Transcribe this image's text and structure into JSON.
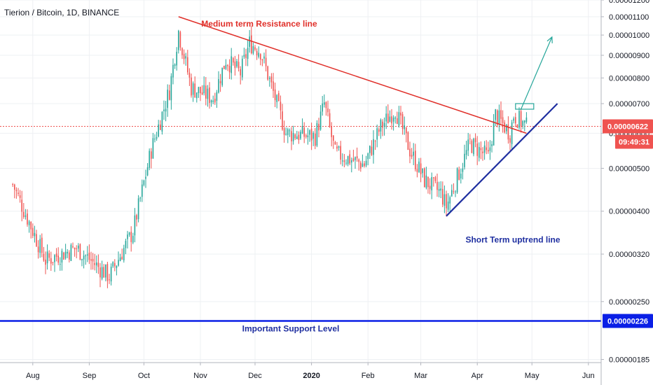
{
  "header": {
    "title": "Tierion / Bitcoin, 1D, BINANCE"
  },
  "chart_data": {
    "type": "candlestick",
    "symbol": "Tierion / Bitcoin",
    "interval": "1D",
    "exchange": "BINANCE",
    "y_axis": {
      "scale": "log",
      "ticks": [
        "0.00000185",
        "0.00000250",
        "0.00000320",
        "0.00000400",
        "0.00000500",
        "0.00000600",
        "0.00000700",
        "0.00000800",
        "0.00000900",
        "0.00001000",
        "0.00001100",
        "0.00001200"
      ]
    },
    "x_axis": {
      "ticks": [
        "Aug",
        "Sep",
        "Oct",
        "Nov",
        "Dec",
        "2020",
        "Feb",
        "Mar",
        "Apr",
        "May",
        "Jun"
      ]
    },
    "price_anchors": [
      {
        "date": "2019-07-21",
        "price": 4.6e-06
      },
      {
        "date": "2019-08-08",
        "price": 3.1e-06
      },
      {
        "date": "2019-08-25",
        "price": 3.3e-06
      },
      {
        "date": "2019-09-12",
        "price": 2.85e-06
      },
      {
        "date": "2019-09-25",
        "price": 3.6e-06
      },
      {
        "date": "2019-10-05",
        "price": 5.5e-06
      },
      {
        "date": "2019-10-15",
        "price": 7.5e-06
      },
      {
        "date": "2019-10-20",
        "price": 1.02e-05
      },
      {
        "date": "2019-10-27",
        "price": 7.6e-06
      },
      {
        "date": "2019-11-08",
        "price": 7.2e-06
      },
      {
        "date": "2019-11-15",
        "price": 8.8e-06
      },
      {
        "date": "2019-11-23",
        "price": 8.2e-06
      },
      {
        "date": "2019-11-28",
        "price": 9.6e-06
      },
      {
        "date": "2019-12-04",
        "price": 9.2e-06
      },
      {
        "date": "2019-12-12",
        "price": 7.2e-06
      },
      {
        "date": "2019-12-18",
        "price": 6e-06
      },
      {
        "date": "2020-01-03",
        "price": 5.9e-06
      },
      {
        "date": "2020-01-08",
        "price": 7e-06
      },
      {
        "date": "2020-01-14",
        "price": 5.4e-06
      },
      {
        "date": "2020-01-30",
        "price": 5.1e-06
      },
      {
        "date": "2020-02-08",
        "price": 6.2e-06
      },
      {
        "date": "2020-02-16",
        "price": 6.8e-06
      },
      {
        "date": "2020-02-24",
        "price": 5.5e-06
      },
      {
        "date": "2020-03-03",
        "price": 4.7e-06
      },
      {
        "date": "2020-03-12",
        "price": 4.4e-06
      },
      {
        "date": "2020-03-15",
        "price": 4.1e-06
      },
      {
        "date": "2020-03-28",
        "price": 5.7e-06
      },
      {
        "date": "2020-04-07",
        "price": 5.3e-06
      },
      {
        "date": "2020-04-11",
        "price": 6.6e-06
      },
      {
        "date": "2020-04-19",
        "price": 6e-06
      },
      {
        "date": "2020-04-21",
        "price": 6.6e-06
      },
      {
        "date": "2020-04-28",
        "price": 6.22e-06
      }
    ],
    "annotations": [
      {
        "label": "Medium term Resistance line",
        "color": "#e0302a",
        "from": {
          "date": "2019-10-20",
          "price": 1.1e-05
        },
        "to": {
          "date": "2020-04-28",
          "price": 6e-06
        }
      },
      {
        "label": "Short Term uptrend line",
        "color": "#1f2fa0",
        "from": {
          "date": "2020-03-15",
          "price": 3.9e-06
        },
        "to": {
          "date": "2020-05-15",
          "price": 7e-06
        }
      },
      {
        "label": "Important Support Level",
        "color": "#0a1fe6",
        "price": 2.26e-06
      }
    ],
    "projection": {
      "from": {
        "date": "2020-04-25",
        "price": 6.8e-06
      },
      "to": {
        "date": "2020-05-12",
        "price": 9.9e-06
      },
      "color": "#26a69a"
    },
    "last_price": "0.00000622",
    "countdown": "09:49:31",
    "support_price": "0.00000226",
    "colors": {
      "up": "#26a69a",
      "down": "#ef5350",
      "resistance": "#e0302a",
      "uptrend": "#1f2fa0",
      "support": "#0a1fe6",
      "last_price_badge": "#ef5350"
    },
    "grid": true
  }
}
